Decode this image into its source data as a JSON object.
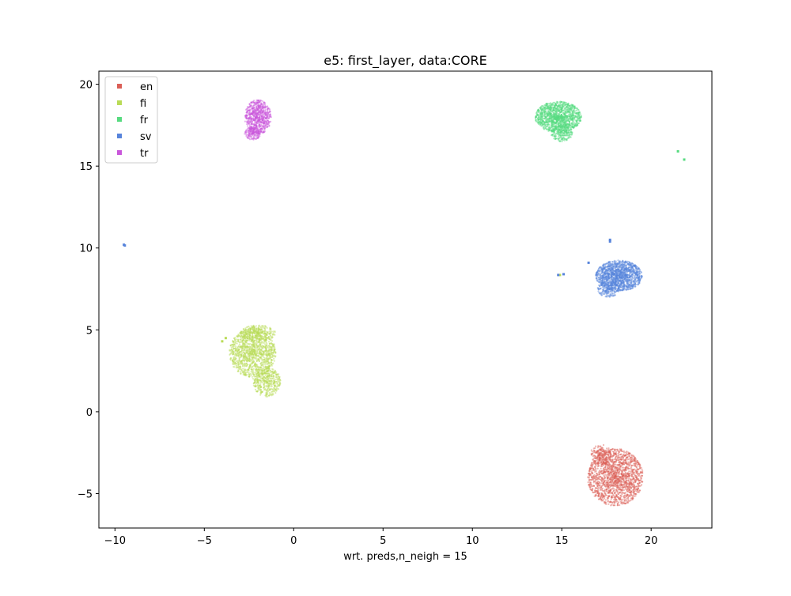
{
  "chart_data": {
    "type": "scatter",
    "title": "e5: first_layer, data:CORE",
    "xlabel": "wrt. preds,n_neigh = 15",
    "ylabel": "",
    "xlim": [
      -10.9,
      23.4
    ],
    "ylim": [
      -7.1,
      20.8
    ],
    "xticks": [
      -10,
      -5,
      0,
      5,
      10,
      15,
      20
    ],
    "yticks": [
      -5,
      0,
      5,
      10,
      15,
      20
    ],
    "xtick_labels": [
      "−10",
      "−5",
      "0",
      "5",
      "10",
      "15",
      "20"
    ],
    "ytick_labels": [
      "−5",
      "0",
      "5",
      "10",
      "15",
      "20"
    ],
    "grid": false,
    "legend_position": "top-left",
    "series": [
      {
        "name": "en",
        "color": "#db5f57",
        "clusters": [
          {
            "center": [
              18.0,
              -4.0
            ],
            "radius": [
              1.55,
              1.75
            ],
            "count": 1600
          },
          {
            "center": [
              17.2,
              -2.6
            ],
            "radius": [
              0.6,
              0.6
            ],
            "count": 150
          }
        ],
        "points": []
      },
      {
        "name": "fi",
        "color": "#b9db57",
        "clusters": [
          {
            "center": [
              -2.3,
              3.6
            ],
            "radius": [
              1.3,
              1.5
            ],
            "count": 1200
          },
          {
            "center": [
              -1.5,
              1.8
            ],
            "radius": [
              0.8,
              0.9
            ],
            "count": 400
          },
          {
            "center": [
              -2.0,
              4.8
            ],
            "radius": [
              1.0,
              0.5
            ],
            "count": 250
          }
        ],
        "points": [
          [
            -4.0,
            4.3
          ],
          [
            -3.8,
            4.5
          ],
          [
            14.9,
            8.35
          ]
        ]
      },
      {
        "name": "fr",
        "color": "#57db80",
        "clusters": [
          {
            "center": [
              14.8,
              18.0
            ],
            "radius": [
              1.3,
              0.95
            ],
            "count": 1300
          },
          {
            "center": [
              15.0,
              17.0
            ],
            "radius": [
              0.6,
              0.5
            ],
            "count": 200
          }
        ],
        "points": [
          [
            21.5,
            15.9
          ],
          [
            21.85,
            15.4
          ]
        ]
      },
      {
        "name": "sv",
        "color": "#5784db",
        "clusters": [
          {
            "center": [
              18.2,
              8.3
            ],
            "radius": [
              1.3,
              0.95
            ],
            "count": 1300
          },
          {
            "center": [
              17.6,
              7.5
            ],
            "radius": [
              0.6,
              0.5
            ],
            "count": 200
          }
        ],
        "points": [
          [
            -9.5,
            10.2
          ],
          [
            -9.45,
            10.15
          ],
          [
            17.7,
            10.4
          ],
          [
            17.7,
            10.5
          ],
          [
            16.5,
            9.1
          ],
          [
            15.1,
            8.4
          ],
          [
            14.8,
            8.35
          ]
        ]
      },
      {
        "name": "tr",
        "color": "#c957db",
        "clusters": [
          {
            "center": [
              -2.0,
              18.0
            ],
            "radius": [
              0.75,
              1.05
            ],
            "count": 700
          },
          {
            "center": [
              -2.3,
              17.0
            ],
            "radius": [
              0.45,
              0.4
            ],
            "count": 150
          }
        ],
        "points": []
      }
    ]
  }
}
